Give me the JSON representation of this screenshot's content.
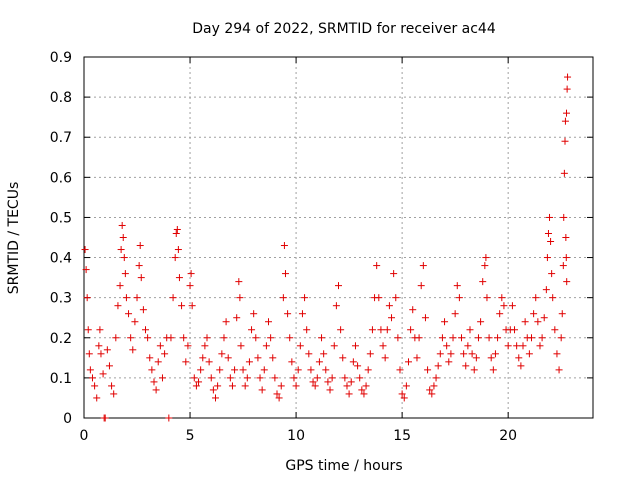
{
  "chart_data": {
    "type": "scatter",
    "title": "Day 294 of 2022, SRMTID for receiver ac44",
    "xlabel": "GPS time / hours",
    "ylabel": "SRMTID / TECUs",
    "xlim": [
      0,
      24
    ],
    "ylim": [
      0,
      0.9
    ],
    "xticks": [
      "0",
      "5",
      "10",
      "15",
      "20"
    ],
    "xtick_values": [
      0,
      5,
      10,
      15,
      20
    ],
    "yticks": [
      "0",
      "0.1",
      "0.2",
      "0.3",
      "0.4",
      "0.5",
      "0.6",
      "0.7",
      "0.8",
      "0.9"
    ],
    "ytick_values": [
      0,
      0.1,
      0.2,
      0.3,
      0.4,
      0.5,
      0.6,
      0.7,
      0.8,
      0.9
    ],
    "grid": true,
    "marker": "plus",
    "color": "#e00000",
    "series": [
      {
        "name": "SRMTID",
        "points": [
          [
            0.05,
            0.42
          ],
          [
            0.1,
            0.37
          ],
          [
            0.15,
            0.3
          ],
          [
            0.2,
            0.22
          ],
          [
            0.25,
            0.16
          ],
          [
            0.3,
            0.12
          ],
          [
            0.4,
            0.1
          ],
          [
            0.5,
            0.08
          ],
          [
            0.6,
            0.05
          ],
          [
            0.7,
            0.18
          ],
          [
            0.75,
            0.22
          ],
          [
            0.8,
            0.16
          ],
          [
            0.9,
            0.11
          ],
          [
            0.95,
            0.0
          ],
          [
            1.0,
            0.0
          ],
          [
            1.1,
            0.17
          ],
          [
            1.2,
            0.13
          ],
          [
            1.3,
            0.08
          ],
          [
            1.4,
            0.06
          ],
          [
            1.5,
            0.2
          ],
          [
            1.6,
            0.28
          ],
          [
            1.7,
            0.33
          ],
          [
            1.75,
            0.42
          ],
          [
            1.8,
            0.48
          ],
          [
            1.85,
            0.45
          ],
          [
            1.9,
            0.4
          ],
          [
            1.95,
            0.36
          ],
          [
            2.0,
            0.3
          ],
          [
            2.1,
            0.26
          ],
          [
            2.2,
            0.2
          ],
          [
            2.3,
            0.17
          ],
          [
            2.4,
            0.24
          ],
          [
            2.5,
            0.3
          ],
          [
            2.6,
            0.38
          ],
          [
            2.65,
            0.43
          ],
          [
            2.7,
            0.35
          ],
          [
            2.8,
            0.27
          ],
          [
            2.9,
            0.22
          ],
          [
            3.0,
            0.2
          ],
          [
            3.1,
            0.15
          ],
          [
            3.2,
            0.12
          ],
          [
            3.3,
            0.09
          ],
          [
            3.4,
            0.07
          ],
          [
            3.5,
            0.14
          ],
          [
            3.6,
            0.18
          ],
          [
            3.7,
            0.1
          ],
          [
            3.8,
            0.16
          ],
          [
            3.9,
            0.2
          ],
          [
            4.0,
            0.0
          ],
          [
            4.1,
            0.2
          ],
          [
            4.2,
            0.3
          ],
          [
            4.3,
            0.4
          ],
          [
            4.35,
            0.46
          ],
          [
            4.4,
            0.47
          ],
          [
            4.45,
            0.42
          ],
          [
            4.5,
            0.35
          ],
          [
            4.6,
            0.28
          ],
          [
            4.7,
            0.2
          ],
          [
            4.8,
            0.14
          ],
          [
            4.9,
            0.18
          ],
          [
            5.0,
            0.33
          ],
          [
            5.05,
            0.36
          ],
          [
            5.1,
            0.28
          ],
          [
            5.2,
            0.1
          ],
          [
            5.3,
            0.08
          ],
          [
            5.4,
            0.09
          ],
          [
            5.5,
            0.12
          ],
          [
            5.6,
            0.15
          ],
          [
            5.7,
            0.18
          ],
          [
            5.8,
            0.2
          ],
          [
            5.9,
            0.14
          ],
          [
            6.0,
            0.1
          ],
          [
            6.1,
            0.07
          ],
          [
            6.2,
            0.05
          ],
          [
            6.3,
            0.08
          ],
          [
            6.4,
            0.12
          ],
          [
            6.5,
            0.16
          ],
          [
            6.6,
            0.2
          ],
          [
            6.7,
            0.24
          ],
          [
            6.8,
            0.15
          ],
          [
            6.9,
            0.1
          ],
          [
            7.0,
            0.08
          ],
          [
            7.1,
            0.12
          ],
          [
            7.2,
            0.25
          ],
          [
            7.3,
            0.34
          ],
          [
            7.35,
            0.3
          ],
          [
            7.4,
            0.18
          ],
          [
            7.5,
            0.12
          ],
          [
            7.6,
            0.08
          ],
          [
            7.7,
            0.1
          ],
          [
            7.8,
            0.14
          ],
          [
            7.9,
            0.22
          ],
          [
            8.0,
            0.26
          ],
          [
            8.1,
            0.2
          ],
          [
            8.2,
            0.15
          ],
          [
            8.3,
            0.1
          ],
          [
            8.4,
            0.07
          ],
          [
            8.5,
            0.12
          ],
          [
            8.6,
            0.18
          ],
          [
            8.7,
            0.24
          ],
          [
            8.8,
            0.2
          ],
          [
            8.9,
            0.15
          ],
          [
            9.0,
            0.1
          ],
          [
            9.1,
            0.06
          ],
          [
            9.2,
            0.05
          ],
          [
            9.3,
            0.08
          ],
          [
            9.4,
            0.3
          ],
          [
            9.45,
            0.43
          ],
          [
            9.5,
            0.36
          ],
          [
            9.6,
            0.26
          ],
          [
            9.7,
            0.2
          ],
          [
            9.8,
            0.14
          ],
          [
            9.9,
            0.1
          ],
          [
            10.0,
            0.08
          ],
          [
            10.1,
            0.12
          ],
          [
            10.2,
            0.18
          ],
          [
            10.3,
            0.26
          ],
          [
            10.4,
            0.3
          ],
          [
            10.5,
            0.22
          ],
          [
            10.6,
            0.16
          ],
          [
            10.7,
            0.12
          ],
          [
            10.8,
            0.09
          ],
          [
            10.9,
            0.08
          ],
          [
            11.0,
            0.1
          ],
          [
            11.1,
            0.14
          ],
          [
            11.2,
            0.2
          ],
          [
            11.3,
            0.16
          ],
          [
            11.4,
            0.12
          ],
          [
            11.5,
            0.09
          ],
          [
            11.6,
            0.07
          ],
          [
            11.7,
            0.1
          ],
          [
            11.8,
            0.18
          ],
          [
            11.9,
            0.28
          ],
          [
            12.0,
            0.33
          ],
          [
            12.1,
            0.22
          ],
          [
            12.2,
            0.15
          ],
          [
            12.3,
            0.1
          ],
          [
            12.4,
            0.08
          ],
          [
            12.5,
            0.06
          ],
          [
            12.6,
            0.09
          ],
          [
            12.7,
            0.14
          ],
          [
            12.8,
            0.18
          ],
          [
            12.9,
            0.13
          ],
          [
            13.0,
            0.1
          ],
          [
            13.1,
            0.07
          ],
          [
            13.2,
            0.06
          ],
          [
            13.3,
            0.08
          ],
          [
            13.4,
            0.12
          ],
          [
            13.5,
            0.16
          ],
          [
            13.6,
            0.22
          ],
          [
            13.7,
            0.3
          ],
          [
            13.8,
            0.38
          ],
          [
            13.9,
            0.3
          ],
          [
            14.0,
            0.22
          ],
          [
            14.1,
            0.18
          ],
          [
            14.2,
            0.15
          ],
          [
            14.3,
            0.22
          ],
          [
            14.4,
            0.28
          ],
          [
            14.5,
            0.25
          ],
          [
            14.6,
            0.36
          ],
          [
            14.7,
            0.3
          ],
          [
            14.8,
            0.2
          ],
          [
            14.9,
            0.12
          ],
          [
            15.0,
            0.06
          ],
          [
            15.1,
            0.05
          ],
          [
            15.2,
            0.08
          ],
          [
            15.3,
            0.14
          ],
          [
            15.4,
            0.22
          ],
          [
            15.5,
            0.27
          ],
          [
            15.6,
            0.2
          ],
          [
            15.7,
            0.15
          ],
          [
            15.8,
            0.2
          ],
          [
            15.9,
            0.33
          ],
          [
            16.0,
            0.38
          ],
          [
            16.1,
            0.25
          ],
          [
            16.2,
            0.12
          ],
          [
            16.3,
            0.07
          ],
          [
            16.4,
            0.06
          ],
          [
            16.5,
            0.08
          ],
          [
            16.6,
            0.1
          ],
          [
            16.7,
            0.13
          ],
          [
            16.8,
            0.16
          ],
          [
            16.9,
            0.2
          ],
          [
            17.0,
            0.24
          ],
          [
            17.1,
            0.18
          ],
          [
            17.2,
            0.14
          ],
          [
            17.3,
            0.16
          ],
          [
            17.4,
            0.2
          ],
          [
            17.5,
            0.26
          ],
          [
            17.6,
            0.33
          ],
          [
            17.7,
            0.3
          ],
          [
            17.8,
            0.2
          ],
          [
            17.9,
            0.16
          ],
          [
            18.0,
            0.13
          ],
          [
            18.1,
            0.18
          ],
          [
            18.2,
            0.22
          ],
          [
            18.3,
            0.16
          ],
          [
            18.4,
            0.12
          ],
          [
            18.5,
            0.15
          ],
          [
            18.6,
            0.2
          ],
          [
            18.7,
            0.24
          ],
          [
            18.8,
            0.34
          ],
          [
            18.9,
            0.38
          ],
          [
            18.95,
            0.4
          ],
          [
            19.0,
            0.3
          ],
          [
            19.1,
            0.2
          ],
          [
            19.2,
            0.15
          ],
          [
            19.3,
            0.12
          ],
          [
            19.4,
            0.16
          ],
          [
            19.5,
            0.2
          ],
          [
            19.6,
            0.26
          ],
          [
            19.7,
            0.3
          ],
          [
            19.8,
            0.28
          ],
          [
            19.9,
            0.22
          ],
          [
            20.0,
            0.18
          ],
          [
            20.1,
            0.22
          ],
          [
            20.2,
            0.28
          ],
          [
            20.3,
            0.22
          ],
          [
            20.4,
            0.18
          ],
          [
            20.5,
            0.15
          ],
          [
            20.6,
            0.13
          ],
          [
            20.7,
            0.18
          ],
          [
            20.8,
            0.24
          ],
          [
            20.9,
            0.2
          ],
          [
            21.0,
            0.16
          ],
          [
            21.1,
            0.2
          ],
          [
            21.2,
            0.26
          ],
          [
            21.3,
            0.3
          ],
          [
            21.4,
            0.24
          ],
          [
            21.5,
            0.18
          ],
          [
            21.6,
            0.2
          ],
          [
            21.7,
            0.25
          ],
          [
            21.8,
            0.32
          ],
          [
            21.85,
            0.4
          ],
          [
            21.9,
            0.46
          ],
          [
            21.95,
            0.5
          ],
          [
            22.0,
            0.44
          ],
          [
            22.05,
            0.36
          ],
          [
            22.1,
            0.3
          ],
          [
            22.2,
            0.22
          ],
          [
            22.3,
            0.16
          ],
          [
            22.4,
            0.12
          ],
          [
            22.5,
            0.2
          ],
          [
            22.55,
            0.26
          ],
          [
            22.6,
            0.38
          ],
          [
            22.62,
            0.5
          ],
          [
            22.65,
            0.61
          ],
          [
            22.68,
            0.69
          ],
          [
            22.7,
            0.74
          ],
          [
            22.75,
            0.76
          ],
          [
            22.78,
            0.82
          ],
          [
            22.8,
            0.85
          ],
          [
            22.72,
            0.45
          ],
          [
            22.74,
            0.4
          ],
          [
            22.76,
            0.34
          ]
        ]
      }
    ]
  }
}
